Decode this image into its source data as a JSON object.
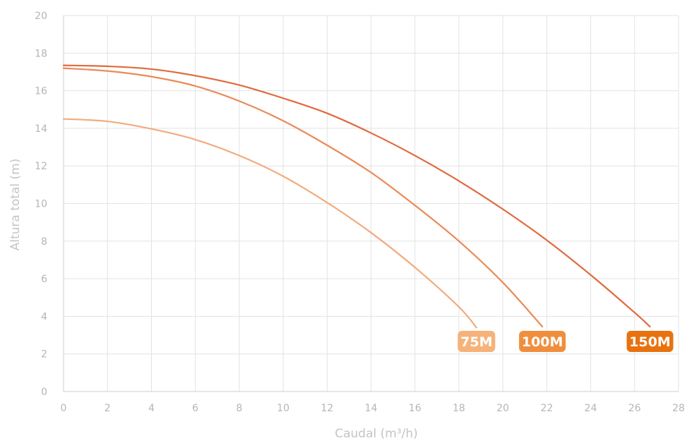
{
  "chart_data": {
    "type": "line",
    "xlabel": "Caudal (m³/h)",
    "ylabel": "Altura total (m)",
    "xlim": [
      0,
      28
    ],
    "ylim": [
      0,
      20
    ],
    "xticks": [
      0,
      2,
      4,
      6,
      8,
      10,
      12,
      14,
      16,
      18,
      20,
      22,
      24,
      26,
      28
    ],
    "yticks": [
      0,
      2,
      4,
      6,
      8,
      10,
      12,
      14,
      16,
      18,
      20
    ],
    "grid": true,
    "series": [
      {
        "name": "75M",
        "color": "#f2ab7e",
        "badge_color": "#f6b27a",
        "x": [
          0,
          2,
          4,
          6,
          8,
          10,
          12,
          14,
          16,
          18,
          18.8
        ],
        "y": [
          14.5,
          14.37,
          13.97,
          13.4,
          12.55,
          11.45,
          10.05,
          8.45,
          6.6,
          4.5,
          3.4
        ]
      },
      {
        "name": "100M",
        "color": "#ea8a58",
        "badge_color": "#ef8f3e",
        "x": [
          0,
          2,
          4,
          6,
          8,
          10,
          12,
          14,
          16,
          18,
          20,
          21.8
        ],
        "y": [
          17.2,
          17.05,
          16.75,
          16.25,
          15.45,
          14.4,
          13.1,
          11.65,
          9.9,
          8.0,
          5.8,
          3.45
        ]
      },
      {
        "name": "150M",
        "color": "#e06a3d",
        "badge_color": "#e8720f",
        "x": [
          0,
          2,
          4,
          6,
          8,
          10,
          12,
          14,
          16,
          18,
          20,
          22,
          24,
          26,
          26.7
        ],
        "y": [
          17.35,
          17.3,
          17.15,
          16.8,
          16.3,
          15.6,
          14.8,
          13.75,
          12.55,
          11.2,
          9.7,
          8.05,
          6.2,
          4.2,
          3.45
        ]
      }
    ]
  }
}
